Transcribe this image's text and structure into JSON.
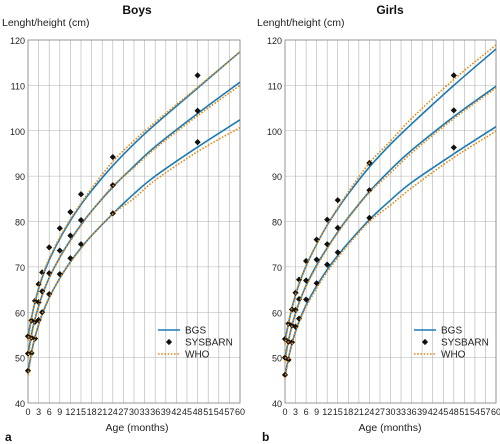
{
  "colors": {
    "BGS": "#1a7ab5",
    "SYSBARN": "#111111",
    "WHO": "#e08a1a",
    "grid": "#b0b0b0"
  },
  "chart_data": [
    {
      "type": "line",
      "panel_label": "a",
      "title": "Boys",
      "ylabel": "Lenght/height (cm)",
      "xlabel": "Age (months)",
      "xlim": [
        0,
        60
      ],
      "ylim": [
        40,
        120
      ],
      "grid": true,
      "legend_position": "bottom-right",
      "x_ticks": [
        "0",
        "3",
        "6",
        "9",
        "12",
        "15",
        "18",
        "21",
        "24",
        "27",
        "30",
        "33",
        "36",
        "39",
        "42",
        "45",
        "48",
        "51",
        "54",
        "57",
        "60"
      ],
      "y_ticks": [
        "40",
        "50",
        "60",
        "70",
        "80",
        "90",
        "100",
        "110",
        "120"
      ],
      "series": [
        {
          "name": "BGS",
          "style": "line",
          "curves": [
            {
              "x": [
                0,
                1,
                2,
                3,
                4,
                6,
                9,
                12,
                15,
                18,
                24,
                30,
                36,
                48,
                60
              ],
              "y": [
                54.6,
                58.8,
                62.3,
                65.2,
                67.6,
                71.5,
                76.2,
                80.2,
                83.7,
                86.8,
                92.3,
                97.1,
                101.4,
                109.4,
                117.4
              ]
            },
            {
              "x": [
                0,
                1,
                2,
                3,
                4,
                6,
                9,
                12,
                15,
                18,
                24,
                30,
                36,
                48,
                60
              ],
              "y": [
                50.8,
                55.2,
                58.6,
                61.3,
                63.7,
                67.6,
                72.1,
                75.9,
                79.3,
                82.3,
                87.6,
                92.2,
                96.5,
                103.8,
                110.7
              ]
            },
            {
              "x": [
                0,
                1,
                2,
                3,
                4,
                6,
                9,
                12,
                15,
                18,
                24,
                30,
                36,
                48,
                60
              ],
              "y": [
                46.8,
                51.2,
                54.6,
                57.2,
                59.5,
                63.2,
                67.5,
                71.1,
                74.2,
                76.9,
                81.7,
                86.1,
                90.0,
                96.4,
                102.4
              ]
            }
          ]
        },
        {
          "name": "SYSBARN",
          "style": "markers",
          "curves": [
            {
              "x": [
                0,
                1,
                2,
                3,
                4,
                6,
                9,
                12,
                15,
                24,
                48
              ],
              "y": [
                54.7,
                58.2,
                62.5,
                66.2,
                68.8,
                74.3,
                78.5,
                82.1,
                86.0,
                94.2,
                112.2
              ]
            },
            {
              "x": [
                0,
                1,
                2,
                3,
                4,
                6,
                9,
                12,
                15,
                24,
                48
              ],
              "y": [
                50.9,
                54.4,
                57.9,
                62.2,
                64.6,
                68.6,
                73.6,
                76.9,
                80.3,
                88.0,
                104.4
              ]
            },
            {
              "x": [
                0,
                1,
                2,
                3,
                4,
                6,
                9,
                12,
                15,
                24,
                48
              ],
              "y": [
                47.1,
                51.0,
                54.2,
                58.3,
                60.0,
                64.0,
                68.4,
                71.9,
                75.0,
                81.8,
                97.5
              ]
            }
          ]
        },
        {
          "name": "WHO",
          "style": "dotted",
          "curves": [
            {
              "x": [
                0,
                1,
                2,
                3,
                4,
                6,
                9,
                12,
                15,
                18,
                24,
                30,
                36,
                48,
                60
              ],
              "y": [
                53.7,
                58.6,
                62.4,
                65.5,
                68.0,
                71.9,
                76.5,
                80.5,
                84.0,
                87.3,
                93.2,
                97.8,
                101.9,
                109.6,
                117.4
              ]
            },
            {
              "x": [
                0,
                1,
                2,
                3,
                4,
                6,
                9,
                12,
                15,
                18,
                24,
                30,
                36,
                48,
                60
              ],
              "y": [
                49.9,
                54.7,
                58.4,
                61.4,
                63.9,
                67.6,
                72.0,
                75.7,
                79.1,
                82.3,
                87.8,
                91.9,
                96.1,
                103.3,
                110.0
              ]
            },
            {
              "x": [
                0,
                1,
                2,
                3,
                4,
                6,
                9,
                12,
                15,
                18,
                24,
                30,
                36,
                48,
                60
              ],
              "y": [
                46.1,
                50.8,
                54.4,
                57.3,
                59.7,
                63.3,
                67.5,
                71.0,
                74.1,
                76.9,
                81.7,
                85.1,
                89.1,
                95.4,
                100.7
              ]
            }
          ]
        }
      ]
    },
    {
      "type": "line",
      "panel_label": "b",
      "title": "Girls",
      "ylabel": "Lenght/height (cm)",
      "xlabel": "Age (months)",
      "xlim": [
        0,
        60
      ],
      "ylim": [
        40,
        120
      ],
      "grid": true,
      "legend_position": "bottom-right",
      "x_ticks": [
        "0",
        "3",
        "6",
        "9",
        "12",
        "15",
        "18",
        "21",
        "24",
        "27",
        "30",
        "33",
        "36",
        "39",
        "42",
        "45",
        "48",
        "51",
        "54",
        "57",
        "60"
      ],
      "y_ticks": [
        "40",
        "50",
        "60",
        "70",
        "80",
        "90",
        "100",
        "110",
        "120"
      ],
      "series": [
        {
          "name": "BGS",
          "style": "line",
          "curves": [
            {
              "x": [
                0,
                1,
                2,
                3,
                4,
                6,
                9,
                12,
                15,
                18,
                24,
                30,
                36,
                48,
                60
              ],
              "y": [
                53.9,
                57.6,
                61.0,
                63.8,
                66.2,
                70.2,
                75.0,
                79.2,
                82.8,
                86.1,
                92.0,
                97.0,
                101.5,
                110.0,
                118.0
              ]
            },
            {
              "x": [
                0,
                1,
                2,
                3,
                4,
                6,
                9,
                12,
                15,
                18,
                24,
                30,
                36,
                48,
                60
              ],
              "y": [
                49.9,
                53.8,
                57.1,
                59.8,
                62.1,
                65.9,
                70.4,
                74.2,
                77.7,
                80.9,
                86.6,
                91.4,
                95.7,
                103.1,
                109.8
              ]
            },
            {
              "x": [
                0,
                1,
                2,
                3,
                4,
                6,
                9,
                12,
                15,
                18,
                24,
                30,
                36,
                48,
                60
              ],
              "y": [
                46.0,
                49.9,
                53.2,
                55.8,
                58.0,
                61.6,
                65.8,
                69.4,
                72.5,
                75.3,
                80.4,
                84.7,
                88.6,
                94.9,
                100.9
              ]
            }
          ]
        },
        {
          "name": "SYSBARN",
          "style": "markers",
          "curves": [
            {
              "x": [
                0,
                1,
                2,
                3,
                4,
                6,
                9,
                12,
                15,
                24,
                48
              ],
              "y": [
                54.1,
                57.5,
                60.6,
                64.3,
                67.2,
                71.3,
                76.0,
                80.4,
                84.7,
                92.9,
                112.2
              ]
            },
            {
              "x": [
                0,
                1,
                2,
                3,
                4,
                6,
                9,
                12,
                15,
                24,
                48
              ],
              "y": [
                50.0,
                53.5,
                57.1,
                60.5,
                62.9,
                67.0,
                71.6,
                75.0,
                78.6,
                86.9,
                104.5
              ]
            },
            {
              "x": [
                0,
                1,
                2,
                3,
                4,
                6,
                9,
                12,
                15,
                24,
                48
              ],
              "y": [
                46.2,
                49.5,
                53.4,
                56.8,
                58.6,
                62.8,
                66.4,
                70.5,
                73.2,
                80.8,
                96.3
              ]
            }
          ]
        },
        {
          "name": "WHO",
          "style": "dotted",
          "curves": [
            {
              "x": [
                0,
                1,
                2,
                3,
                4,
                6,
                9,
                12,
                15,
                18,
                24,
                30,
                36,
                48,
                60
              ],
              "y": [
                52.9,
                57.6,
                61.1,
                64.0,
                66.4,
                70.3,
                75.0,
                79.2,
                83.0,
                86.5,
                92.9,
                97.7,
                102.7,
                111.3,
                118.9
              ]
            },
            {
              "x": [
                0,
                1,
                2,
                3,
                4,
                6,
                9,
                12,
                15,
                18,
                24,
                30,
                36,
                48,
                60
              ],
              "y": [
                49.1,
                53.7,
                57.1,
                59.8,
                62.1,
                65.7,
                70.1,
                74.0,
                77.5,
                80.7,
                86.4,
                90.7,
                95.1,
                102.7,
                109.4
              ]
            },
            {
              "x": [
                0,
                1,
                2,
                3,
                4,
                6,
                9,
                12,
                15,
                18,
                24,
                30,
                36,
                48,
                60
              ],
              "y": [
                45.4,
                49.8,
                53.0,
                55.6,
                57.8,
                61.2,
                65.3,
                68.9,
                72.0,
                74.9,
                80.0,
                83.6,
                87.4,
                94.1,
                99.9
              ]
            }
          ]
        }
      ]
    }
  ]
}
